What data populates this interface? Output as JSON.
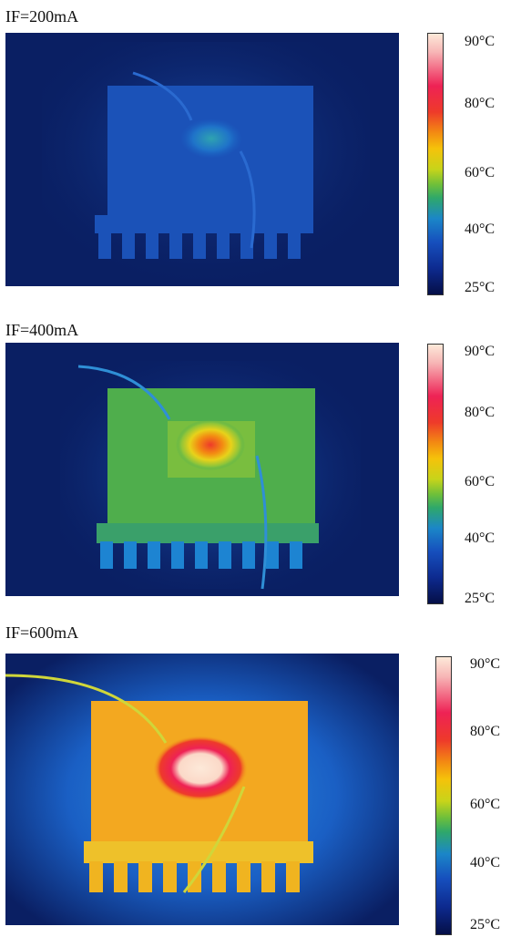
{
  "panels": [
    {
      "label": "IF=200mA",
      "level": "cool"
    },
    {
      "label": "IF=400mA",
      "level": "warm"
    },
    {
      "label": "IF=600mA",
      "level": "hot"
    }
  ],
  "scale": {
    "ticks": [
      "90°C",
      "80°C",
      "60°C",
      "40°C",
      "25°C"
    ],
    "colors": [
      "#fde9d9",
      "#ee2255",
      "#f38b12",
      "#c7d41a",
      "#2fa86a",
      "#164fbd",
      "#050f47"
    ]
  }
}
